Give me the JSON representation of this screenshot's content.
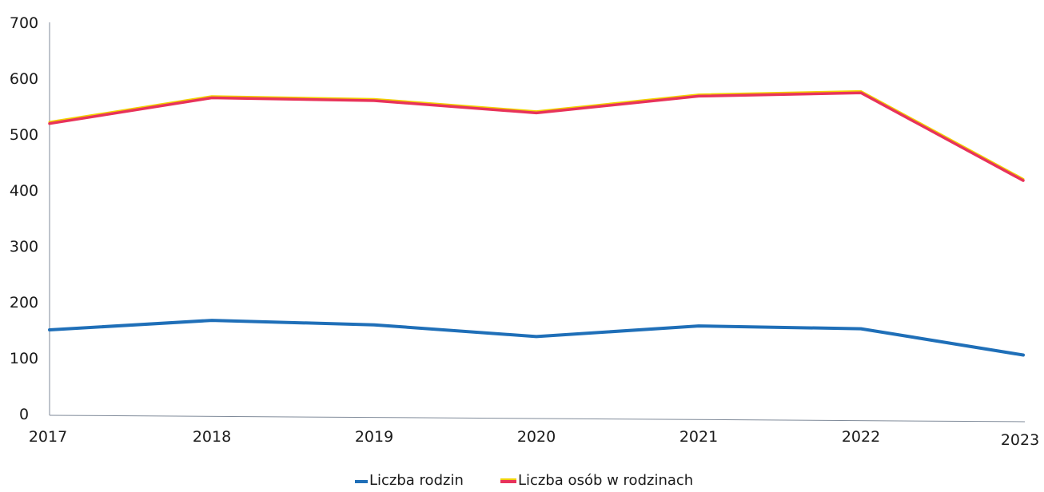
{
  "chart_data": {
    "type": "line",
    "title": "",
    "xlabel": "",
    "ylabel": "",
    "categories": [
      "2017",
      "2018",
      "2019",
      "2020",
      "2021",
      "2022",
      "2023"
    ],
    "yticks": [
      "0",
      "100",
      "200",
      "300",
      "400",
      "500",
      "600",
      "700"
    ],
    "ylim": [
      0,
      700
    ],
    "grid": false,
    "legend_position": "bottom",
    "series": [
      {
        "name": "Liczba rodzin",
        "values": [
          150,
          167,
          159,
          138,
          157,
          152,
          105
        ],
        "color": "#1f6fb8"
      },
      {
        "name": "Liczba osób w rodzinach",
        "values": [
          519,
          565,
          560,
          538,
          568,
          574,
          417
        ],
        "color": "#e8335a",
        "halo_color": "#f2d100"
      }
    ]
  }
}
